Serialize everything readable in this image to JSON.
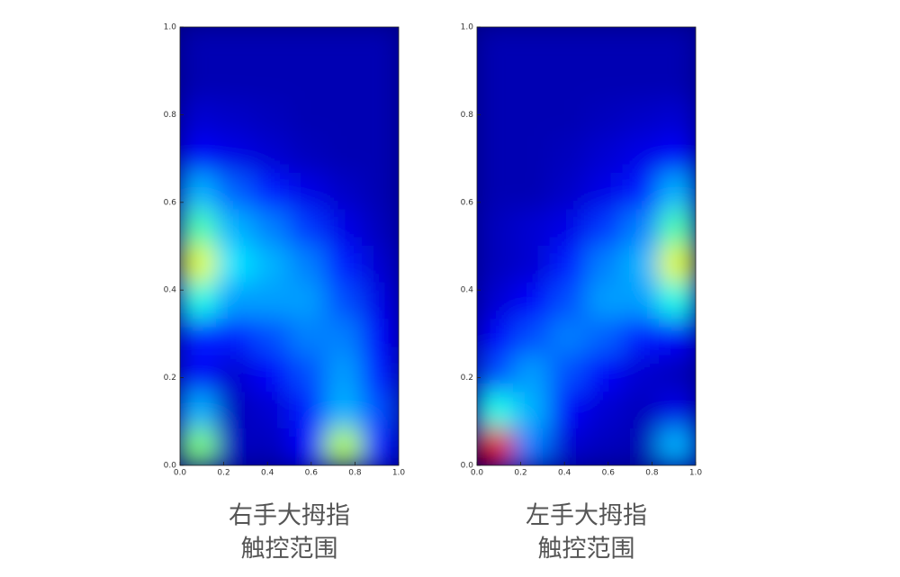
{
  "chart_data": [
    {
      "type": "heatmap",
      "colormap": "jet",
      "caption": [
        "右手大拇指",
        "触控范围"
      ],
      "xlim": [
        0,
        1
      ],
      "ylim": [
        0,
        1
      ],
      "xticks": [
        {
          "value": 0,
          "label": "0.0"
        },
        0.2,
        0.4,
        0.6,
        0.8,
        {
          "value": 1,
          "label": "1.0"
        }
      ],
      "yticks": [
        {
          "value": 0,
          "label": "0.0"
        },
        0.2,
        0.4,
        0.6,
        0.8,
        {
          "value": 1,
          "label": "1.0"
        }
      ],
      "values": [
        [
          0.05,
          0.05,
          0.05,
          0.05,
          0.05,
          0.05
        ],
        [
          0.05,
          0.05,
          0.05,
          0.05,
          0.05,
          0.05
        ],
        [
          0.08,
          0.07,
          0.06,
          0.05,
          0.05,
          0.05
        ],
        [
          0.12,
          0.1,
          0.08,
          0.06,
          0.05,
          0.05
        ],
        [
          0.3,
          0.22,
          0.15,
          0.1,
          0.07,
          0.05
        ],
        [
          0.45,
          0.3,
          0.25,
          0.18,
          0.1,
          0.06
        ],
        [
          0.6,
          0.35,
          0.3,
          0.25,
          0.15,
          0.08
        ],
        [
          0.4,
          0.28,
          0.28,
          0.28,
          0.2,
          0.1
        ],
        [
          0.15,
          0.15,
          0.2,
          0.25,
          0.25,
          0.12
        ],
        [
          0.12,
          0.08,
          0.12,
          0.2,
          0.28,
          0.15
        ],
        [
          0.3,
          0.06,
          0.08,
          0.15,
          0.3,
          0.2
        ],
        [
          0.5,
          0.06,
          0.06,
          0.12,
          0.55,
          0.15
        ]
      ]
    },
    {
      "type": "heatmap",
      "colormap": "jet",
      "caption": [
        "左手大拇指",
        "触控范围"
      ],
      "xlim": [
        0,
        1
      ],
      "ylim": [
        0,
        1
      ],
      "xticks": [
        {
          "value": 0,
          "label": "0.0"
        },
        0.2,
        0.4,
        0.6,
        0.8,
        {
          "value": 1,
          "label": "1.0"
        }
      ],
      "yticks": [
        {
          "value": 0,
          "label": "0.0"
        },
        0.2,
        0.4,
        0.6,
        0.8,
        {
          "value": 1,
          "label": "1.0"
        }
      ],
      "values": [
        [
          0.05,
          0.05,
          0.05,
          0.05,
          0.05,
          0.05
        ],
        [
          0.05,
          0.05,
          0.05,
          0.05,
          0.05,
          0.05
        ],
        [
          0.05,
          0.05,
          0.05,
          0.06,
          0.07,
          0.08
        ],
        [
          0.05,
          0.05,
          0.06,
          0.08,
          0.1,
          0.12
        ],
        [
          0.05,
          0.05,
          0.07,
          0.1,
          0.15,
          0.3
        ],
        [
          0.06,
          0.08,
          0.1,
          0.18,
          0.25,
          0.45
        ],
        [
          0.06,
          0.08,
          0.15,
          0.25,
          0.3,
          0.6
        ],
        [
          0.08,
          0.12,
          0.2,
          0.28,
          0.28,
          0.4
        ],
        [
          0.12,
          0.2,
          0.25,
          0.22,
          0.15,
          0.12
        ],
        [
          0.2,
          0.28,
          0.2,
          0.12,
          0.08,
          0.06
        ],
        [
          0.4,
          0.3,
          0.12,
          0.08,
          0.06,
          0.1
        ],
        [
          0.9,
          0.25,
          0.08,
          0.06,
          0.05,
          0.3
        ]
      ]
    }
  ]
}
